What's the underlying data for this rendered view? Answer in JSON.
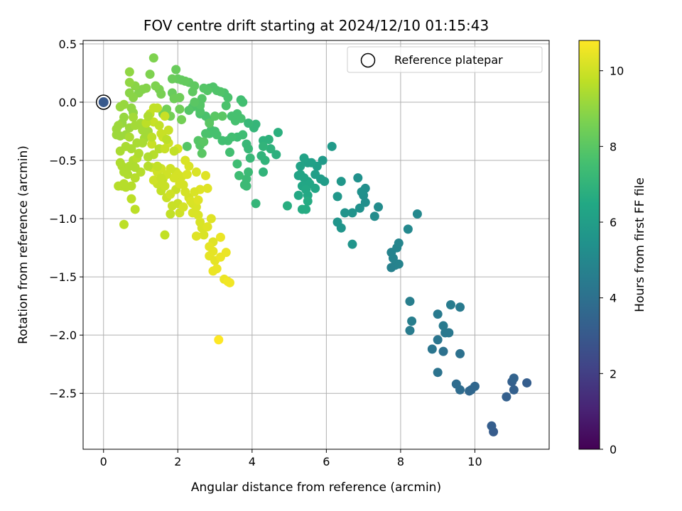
{
  "chart_data": {
    "type": "scatter",
    "title": "FOV centre drift starting at 2024/12/10 01:15:43",
    "xlabel": "Angular distance from reference (arcmin)",
    "ylabel": "Rotation from reference (arcmin)",
    "xlim": [
      -0.55,
      12.0
    ],
    "ylim": [
      -2.98,
      0.53
    ],
    "x_ticks": [
      0,
      2,
      4,
      6,
      8,
      10
    ],
    "y_ticks": [
      0.5,
      0.0,
      -0.5,
      -1.0,
      -1.5,
      -2.0,
      -2.5
    ],
    "x_tick_labels": [
      "0",
      "2",
      "4",
      "6",
      "8",
      "10"
    ],
    "y_tick_labels": [
      "0.5",
      "0.0",
      "−0.5",
      "−1.0",
      "−1.5",
      "−2.0",
      "−2.5"
    ],
    "grid": true,
    "legend": {
      "placement": "top-right",
      "entries": [
        "Reference platepar"
      ]
    },
    "colorbar": {
      "label": "Hours from first FF file",
      "colormap": "viridis",
      "range": [
        0,
        10.8
      ],
      "ticks": [
        0,
        2,
        4,
        6,
        8,
        10
      ],
      "tick_labels": [
        "0",
        "2",
        "4",
        "6",
        "8",
        "10"
      ]
    },
    "reference": {
      "x": 0.0,
      "y": 0.0,
      "c": 3.0
    },
    "points": [
      [
        10.5,
        -2.83,
        3.1
      ],
      [
        10.45,
        -2.78,
        3.2
      ],
      [
        10.85,
        -2.53,
        3.3
      ],
      [
        11.05,
        -2.47,
        3.3
      ],
      [
        11.4,
        -2.41,
        3.2
      ],
      [
        11.0,
        -2.4,
        3.3
      ],
      [
        11.05,
        -2.37,
        3.4
      ],
      [
        9.85,
        -2.48,
        3.6
      ],
      [
        9.9,
        -2.47,
        3.6
      ],
      [
        10.0,
        -2.44,
        3.6
      ],
      [
        9.6,
        -2.47,
        3.8
      ],
      [
        9.5,
        -2.42,
        3.8
      ],
      [
        9.6,
        -2.16,
        4.0
      ],
      [
        9.15,
        -2.14,
        4.0
      ],
      [
        9.0,
        -2.32,
        4.1
      ],
      [
        8.85,
        -2.12,
        4.2
      ],
      [
        9.0,
        -2.04,
        4.2
      ],
      [
        9.2,
        -1.98,
        4.3
      ],
      [
        9.3,
        -1.98,
        4.3
      ],
      [
        9.15,
        -1.92,
        4.4
      ],
      [
        9.0,
        -1.82,
        4.4
      ],
      [
        9.35,
        -1.74,
        4.5
      ],
      [
        9.6,
        -1.76,
        4.4
      ],
      [
        8.25,
        -1.96,
        4.5
      ],
      [
        8.3,
        -1.88,
        4.6
      ],
      [
        8.25,
        -1.71,
        4.6
      ],
      [
        7.75,
        -1.42,
        4.7
      ],
      [
        7.85,
        -1.4,
        4.7
      ],
      [
        7.95,
        -1.39,
        4.8
      ],
      [
        7.8,
        -1.34,
        4.8
      ],
      [
        7.75,
        -1.29,
        4.8
      ],
      [
        7.9,
        -1.25,
        4.9
      ],
      [
        7.95,
        -1.21,
        4.9
      ],
      [
        8.2,
        -1.09,
        5.0
      ],
      [
        8.45,
        -0.96,
        5.0
      ],
      [
        7.3,
        -0.98,
        5.2
      ],
      [
        7.4,
        -0.9,
        5.2
      ],
      [
        7.05,
        -0.86,
        5.3
      ],
      [
        7.0,
        -0.8,
        5.3
      ],
      [
        7.05,
        -0.74,
        5.3
      ],
      [
        6.95,
        -0.77,
        5.4
      ],
      [
        6.85,
        -0.65,
        5.4
      ],
      [
        6.9,
        -0.91,
        5.4
      ],
      [
        6.7,
        -0.95,
        5.5
      ],
      [
        6.5,
        -0.95,
        5.5
      ],
      [
        6.4,
        -1.08,
        5.6
      ],
      [
        6.3,
        -1.03,
        5.6
      ],
      [
        6.7,
        -1.22,
        5.6
      ],
      [
        6.4,
        -0.68,
        5.7
      ],
      [
        6.3,
        -0.81,
        5.7
      ],
      [
        6.15,
        -0.38,
        5.8
      ],
      [
        5.9,
        -0.5,
        5.8
      ],
      [
        5.95,
        -0.68,
        5.9
      ],
      [
        5.85,
        -0.66,
        5.9
      ],
      [
        5.75,
        -0.55,
        6.0
      ],
      [
        5.7,
        -0.62,
        6.0
      ],
      [
        5.6,
        -0.52,
        6.1
      ],
      [
        5.5,
        -0.52,
        6.1
      ],
      [
        5.4,
        -0.48,
        6.2
      ],
      [
        5.3,
        -0.55,
        6.2
      ],
      [
        5.25,
        -0.63,
        6.2
      ],
      [
        5.3,
        -0.62,
        6.3
      ],
      [
        5.4,
        -0.65,
        6.3
      ],
      [
        5.5,
        -0.68,
        6.3
      ],
      [
        5.55,
        -0.7,
        6.4
      ],
      [
        5.7,
        -0.74,
        6.4
      ],
      [
        5.35,
        -0.72,
        6.4
      ],
      [
        5.45,
        -0.75,
        6.5
      ],
      [
        5.5,
        -0.8,
        6.5
      ],
      [
        5.25,
        -0.8,
        6.5
      ],
      [
        5.35,
        -0.92,
        6.6
      ],
      [
        5.45,
        -0.92,
        6.6
      ],
      [
        5.5,
        -0.85,
        6.6
      ],
      [
        4.95,
        -0.89,
        6.7
      ],
      [
        4.7,
        -0.26,
        6.8
      ],
      [
        4.65,
        -0.45,
        6.8
      ],
      [
        4.5,
        -0.4,
        6.9
      ],
      [
        4.45,
        -0.32,
        6.9
      ],
      [
        4.3,
        -0.33,
        6.9
      ],
      [
        4.3,
        -0.38,
        7.0
      ],
      [
        4.25,
        -0.46,
        7.0
      ],
      [
        4.35,
        -0.5,
        7.0
      ],
      [
        4.3,
        -0.6,
        7.0
      ],
      [
        4.1,
        -0.87,
        7.1
      ],
      [
        4.1,
        -0.19,
        7.1
      ],
      [
        4.05,
        -0.22,
        7.1
      ],
      [
        3.9,
        -0.18,
        7.2
      ],
      [
        3.85,
        -0.36,
        7.2
      ],
      [
        3.9,
        -0.4,
        7.2
      ],
      [
        3.95,
        -0.48,
        7.2
      ],
      [
        3.9,
        -0.6,
        7.3
      ],
      [
        3.85,
        -0.66,
        7.3
      ],
      [
        3.85,
        -0.72,
        7.3
      ],
      [
        3.8,
        -0.71,
        7.3
      ],
      [
        3.65,
        -0.63,
        7.4
      ],
      [
        3.6,
        -0.53,
        7.4
      ],
      [
        3.75,
        -0.28,
        7.4
      ],
      [
        3.6,
        -0.3,
        7.4
      ],
      [
        3.45,
        -0.3,
        7.5
      ],
      [
        3.35,
        -0.33,
        7.5
      ],
      [
        3.4,
        -0.43,
        7.5
      ],
      [
        3.2,
        -0.33,
        7.5
      ],
      [
        3.05,
        -0.28,
        7.6
      ],
      [
        3.0,
        -0.25,
        7.6
      ],
      [
        2.9,
        -0.24,
        7.6
      ],
      [
        2.85,
        -0.27,
        7.6
      ],
      [
        2.75,
        -0.27,
        7.7
      ],
      [
        2.85,
        -0.16,
        7.7
      ],
      [
        2.75,
        -0.12,
        7.7
      ],
      [
        2.6,
        -0.1,
        7.7
      ],
      [
        2.6,
        -0.03,
        7.8
      ],
      [
        2.6,
        -0.08,
        7.8
      ],
      [
        2.45,
        -0.03,
        7.8
      ],
      [
        2.4,
        -0.04,
        7.8
      ],
      [
        2.3,
        -0.07,
        7.9
      ],
      [
        2.25,
        -0.38,
        7.9
      ],
      [
        2.55,
        -0.33,
        7.9
      ],
      [
        2.6,
        -0.37,
        7.9
      ],
      [
        2.65,
        -0.44,
        8.0
      ],
      [
        2.7,
        -0.34,
        8.0
      ],
      [
        2.85,
        -0.18,
        8.0
      ],
      [
        3.0,
        -0.12,
        8.0
      ],
      [
        3.2,
        -0.12,
        8.0
      ],
      [
        3.45,
        -0.12,
        7.6
      ],
      [
        3.55,
        -0.16,
        7.6
      ],
      [
        3.6,
        -0.1,
        7.6
      ],
      [
        3.7,
        -0.14,
        7.6
      ],
      [
        3.75,
        0.0,
        7.5
      ],
      [
        3.7,
        0.02,
        7.5
      ],
      [
        3.3,
        -0.03,
        7.7
      ],
      [
        3.35,
        0.04,
        7.7
      ],
      [
        3.25,
        0.08,
        7.7
      ],
      [
        3.15,
        0.09,
        7.8
      ],
      [
        3.05,
        0.1,
        7.8
      ],
      [
        2.95,
        0.13,
        7.8
      ],
      [
        2.85,
        0.12,
        7.8
      ],
      [
        2.8,
        0.1,
        7.9
      ],
      [
        2.7,
        0.12,
        7.9
      ],
      [
        2.65,
        0.03,
        7.9
      ],
      [
        2.6,
        -0.02,
        7.9
      ],
      [
        2.45,
        0.0,
        8.0
      ],
      [
        2.45,
        0.14,
        8.1
      ],
      [
        2.4,
        0.09,
        8.1
      ],
      [
        2.3,
        0.17,
        8.1
      ],
      [
        2.2,
        0.18,
        8.2
      ],
      [
        2.1,
        0.19,
        8.2
      ],
      [
        2.0,
        0.2,
        8.2
      ],
      [
        1.95,
        0.28,
        8.3
      ],
      [
        1.85,
        0.2,
        8.3
      ],
      [
        1.85,
        0.08,
        8.3
      ],
      [
        1.9,
        0.03,
        8.4
      ],
      [
        2.05,
        0.04,
        8.4
      ],
      [
        2.05,
        -0.06,
        8.4
      ],
      [
        2.1,
        -0.15,
        8.5
      ],
      [
        1.8,
        -0.12,
        8.5
      ],
      [
        1.7,
        -0.06,
        8.5
      ],
      [
        1.6,
        -0.1,
        8.6
      ],
      [
        1.55,
        0.07,
        8.6
      ],
      [
        1.5,
        0.11,
        8.6
      ],
      [
        1.4,
        0.14,
        8.7
      ],
      [
        1.35,
        0.38,
        8.7
      ],
      [
        1.25,
        0.24,
        8.7
      ],
      [
        1.15,
        0.12,
        8.8
      ],
      [
        1.05,
        0.11,
        8.8
      ],
      [
        0.95,
        0.08,
        8.8
      ],
      [
        0.85,
        0.14,
        8.9
      ],
      [
        0.8,
        0.04,
        8.9
      ],
      [
        0.7,
        0.08,
        8.9
      ],
      [
        0.7,
        0.17,
        9.0
      ],
      [
        0.7,
        0.26,
        9.0
      ],
      [
        0.75,
        -0.05,
        9.0
      ],
      [
        0.8,
        -0.09,
        9.0
      ],
      [
        0.55,
        -0.02,
        9.1
      ],
      [
        0.55,
        -0.13,
        9.1
      ],
      [
        0.45,
        -0.04,
        9.1
      ],
      [
        0.5,
        -0.18,
        9.1
      ],
      [
        0.4,
        -0.2,
        9.2
      ],
      [
        0.35,
        -0.23,
        9.2
      ],
      [
        0.35,
        -0.28,
        9.2
      ],
      [
        0.45,
        -0.29,
        9.2
      ],
      [
        0.6,
        -0.28,
        9.2
      ],
      [
        0.7,
        -0.22,
        9.2
      ],
      [
        0.85,
        -0.2,
        9.3
      ],
      [
        0.8,
        -0.13,
        9.3
      ],
      [
        1.0,
        -0.18,
        9.3
      ],
      [
        1.05,
        -0.24,
        9.3
      ],
      [
        1.2,
        -0.25,
        9.3
      ],
      [
        1.1,
        -0.31,
        9.3
      ],
      [
        1.05,
        -0.35,
        9.4
      ],
      [
        0.9,
        -0.35,
        9.4
      ],
      [
        0.75,
        -0.4,
        9.4
      ],
      [
        0.6,
        -0.38,
        9.4
      ],
      [
        0.45,
        -0.42,
        9.4
      ],
      [
        0.45,
        -0.52,
        9.5
      ],
      [
        0.5,
        -0.55,
        9.5
      ],
      [
        0.55,
        -0.6,
        9.5
      ],
      [
        0.65,
        -0.62,
        9.5
      ],
      [
        0.7,
        -0.55,
        9.5
      ],
      [
        0.8,
        -0.5,
        9.5
      ],
      [
        0.9,
        -0.48,
        9.6
      ],
      [
        1.0,
        -0.6,
        9.6
      ],
      [
        0.85,
        -0.65,
        9.6
      ],
      [
        0.75,
        -0.72,
        9.6
      ],
      [
        0.6,
        -0.73,
        9.6
      ],
      [
        0.5,
        -0.72,
        9.6
      ],
      [
        0.4,
        -0.72,
        9.6
      ],
      [
        0.55,
        -0.7,
        9.6
      ],
      [
        0.75,
        -0.83,
        9.7
      ],
      [
        0.85,
        -0.92,
        9.7
      ],
      [
        0.55,
        -1.05,
        9.7
      ],
      [
        1.65,
        -1.14,
        9.8
      ],
      [
        1.8,
        -0.96,
        9.8
      ],
      [
        1.55,
        -0.76,
        9.8
      ],
      [
        1.6,
        -0.66,
        9.8
      ],
      [
        1.65,
        -0.72,
        9.9
      ],
      [
        1.7,
        -0.82,
        9.9
      ],
      [
        1.85,
        -0.89,
        9.9
      ],
      [
        2.0,
        -0.87,
        9.9
      ],
      [
        1.45,
        -0.7,
        9.9
      ],
      [
        1.35,
        -0.67,
        10.0
      ],
      [
        1.3,
        -0.56,
        10.0
      ],
      [
        1.45,
        -0.6,
        10.0
      ],
      [
        1.55,
        -0.57,
        10.0
      ],
      [
        1.8,
        -0.57,
        10.0
      ],
      [
        1.95,
        -0.6,
        10.0
      ],
      [
        2.0,
        -0.62,
        10.1
      ],
      [
        2.1,
        -0.64,
        10.1
      ],
      [
        2.15,
        -0.71,
        10.1
      ],
      [
        2.2,
        -0.77,
        10.1
      ],
      [
        2.3,
        -0.82,
        10.1
      ],
      [
        2.4,
        -0.87,
        10.1
      ],
      [
        2.5,
        -0.9,
        10.2
      ],
      [
        2.55,
        -0.97,
        10.2
      ],
      [
        2.6,
        -1.03,
        10.2
      ],
      [
        2.65,
        -1.08,
        10.2
      ],
      [
        2.7,
        -1.14,
        10.2
      ],
      [
        2.5,
        -1.15,
        10.3
      ],
      [
        2.8,
        -1.07,
        10.3
      ],
      [
        2.9,
        -1.0,
        10.3
      ],
      [
        2.95,
        -1.2,
        10.3
      ],
      [
        2.85,
        -1.24,
        10.4
      ],
      [
        2.95,
        -1.28,
        10.4
      ],
      [
        2.85,
        -1.32,
        10.4
      ],
      [
        3.0,
        -1.36,
        10.4
      ],
      [
        3.05,
        -1.43,
        10.5
      ],
      [
        2.95,
        -1.45,
        10.5
      ],
      [
        3.15,
        -1.33,
        10.5
      ],
      [
        3.25,
        -1.52,
        10.5
      ],
      [
        3.35,
        -1.54,
        10.6
      ],
      [
        3.4,
        -1.55,
        10.6
      ],
      [
        3.3,
        -1.29,
        10.5
      ],
      [
        3.15,
        -1.16,
        10.5
      ],
      [
        3.1,
        -2.04,
        10.8
      ],
      [
        2.8,
        -0.74,
        10.3
      ],
      [
        2.75,
        -0.63,
        10.3
      ],
      [
        2.5,
        -0.6,
        10.2
      ],
      [
        2.3,
        -0.55,
        10.2
      ],
      [
        2.2,
        -0.5,
        10.2
      ],
      [
        2.0,
        -0.4,
        10.1
      ],
      [
        1.75,
        -0.35,
        10.0
      ],
      [
        1.6,
        -0.3,
        10.0
      ],
      [
        1.75,
        -0.24,
        9.9
      ],
      [
        1.3,
        -0.36,
        9.9
      ],
      [
        1.35,
        -0.17,
        9.9
      ],
      [
        1.25,
        -0.1,
        9.8
      ],
      [
        1.35,
        -0.05,
        9.8
      ],
      [
        1.45,
        -0.05,
        9.8
      ],
      [
        1.5,
        -0.2,
        9.8
      ],
      [
        1.55,
        -0.27,
        9.9
      ],
      [
        1.65,
        -0.12,
        9.9
      ],
      [
        1.15,
        -0.18,
        9.7
      ],
      [
        1.3,
        -0.3,
        9.7
      ],
      [
        1.5,
        -0.4,
        9.6
      ],
      [
        1.35,
        -0.45,
        9.6
      ],
      [
        1.2,
        -0.47,
        9.5
      ],
      [
        0.95,
        -0.44,
        9.5
      ],
      [
        0.85,
        -0.56,
        9.5
      ],
      [
        0.7,
        -0.3,
        9.4
      ],
      [
        1.2,
        -0.12,
        9.5
      ],
      [
        1.7,
        -0.32,
        9.7
      ],
      [
        1.9,
        -0.42,
        9.8
      ],
      [
        1.95,
        -0.75,
        9.9
      ],
      [
        2.05,
        -0.95,
        10.0
      ],
      [
        2.4,
        -0.95,
        10.2
      ],
      [
        2.35,
        -0.85,
        10.2
      ],
      [
        2.15,
        -0.9,
        10.1
      ],
      [
        2.6,
        -0.75,
        10.3
      ],
      [
        2.45,
        -0.77,
        10.2
      ],
      [
        2.55,
        -0.84,
        10.3
      ],
      [
        2.05,
        -0.7,
        10.1
      ],
      [
        1.9,
        -0.65,
        10.1
      ],
      [
        1.8,
        -0.79,
        10.0
      ],
      [
        2.25,
        -0.62,
        10.2
      ],
      [
        1.7,
        -0.62,
        10.0
      ],
      [
        1.55,
        -0.65,
        9.9
      ],
      [
        1.65,
        -0.4,
        9.9
      ],
      [
        1.2,
        -0.55,
        9.6
      ],
      [
        1.45,
        -0.55,
        9.8
      ]
    ]
  }
}
